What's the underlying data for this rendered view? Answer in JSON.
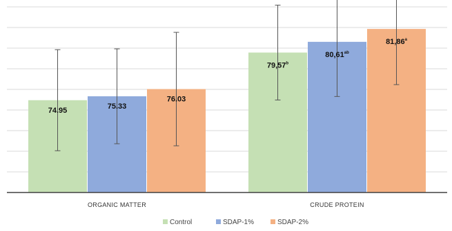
{
  "chart_data": {
    "type": "bar",
    "categories": [
      "ORGANIC MATTER",
      "CRUDE PROTEIN"
    ],
    "series": [
      {
        "name": "Control",
        "color": "#c5e0b4",
        "values": [
          74.95,
          79.57
        ],
        "errors": [
          4.9,
          4.6
        ],
        "labels": [
          "74.95",
          "79,57"
        ],
        "sups": [
          "",
          "b"
        ]
      },
      {
        "name": "SDAP-1%",
        "color": "#8faadc",
        "values": [
          75.33,
          80.61
        ],
        "errors": [
          4.6,
          5.3
        ],
        "labels": [
          "75.33",
          "80,61"
        ],
        "sups": [
          "",
          "ab"
        ]
      },
      {
        "name": "SDAP-2%",
        "color": "#f4b183",
        "values": [
          76.03,
          81.86
        ],
        "errors": [
          5.5,
          5.4
        ],
        "labels": [
          "76.03",
          "81,86"
        ],
        "sups": [
          "",
          "a"
        ]
      }
    ],
    "ylim": [
      66,
      84
    ],
    "grid": true,
    "legend": "bottom",
    "title": "",
    "xlabel": "",
    "ylabel": ""
  }
}
